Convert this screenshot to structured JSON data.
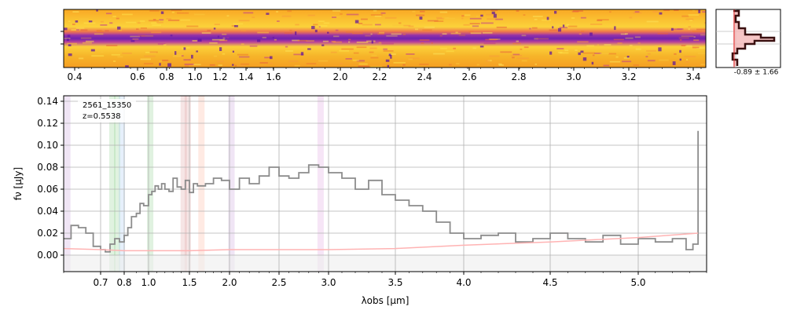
{
  "chart_data": [
    {
      "type": "heatmap",
      "panel": "2d-spectrum",
      "x_ticks": [
        "0.4",
        "0.6",
        "0.8",
        "1.0",
        "1.2",
        "1.4",
        "1.6",
        "2.0",
        "2.2",
        "2.4",
        "2.6",
        "2.8",
        "3.0",
        "3.2",
        "3.4"
      ],
      "x_tick_values": [
        0.4,
        0.6,
        0.8,
        1.0,
        1.2,
        1.4,
        1.6,
        2.0,
        2.2,
        2.4,
        2.6,
        2.8,
        3.0,
        3.2,
        3.4
      ],
      "colormap": "plasma",
      "trace_color": "#7a2ab0"
    },
    {
      "type": "histogram",
      "panel": "pixel-distribution",
      "annotation": "-0.89 ± 1.66",
      "fill_color": "#f4b6b6",
      "edge_color": "#3a1010",
      "line_color": "#e03030"
    },
    {
      "type": "line",
      "panel": "1d-spectrum",
      "title": "",
      "object_id": "2561_15350",
      "redshift_label": "z=0.5538",
      "xlabel": "λobs [μm]",
      "ylabel": "fν [μJy]",
      "xlim": [
        0.6,
        5.4
      ],
      "ylim": [
        -0.015,
        0.145
      ],
      "x_ticks": [
        0.7,
        0.8,
        1.0,
        1.5,
        2.0,
        2.5,
        3.0,
        3.5,
        4.0,
        4.5,
        5.0
      ],
      "x_tick_labels": [
        "0.7",
        "0.8",
        "1.0",
        "1.5",
        "2.0",
        "2.5",
        "3.0",
        "3.5",
        "4.0",
        "4.5",
        "5.0"
      ],
      "y_ticks": [
        0.0,
        0.02,
        0.04,
        0.06,
        0.08,
        0.1,
        0.12,
        0.14
      ],
      "y_tick_labels": [
        "0.00",
        "0.02",
        "0.04",
        "0.06",
        "0.08",
        "0.10",
        "0.12",
        "0.14"
      ],
      "grid": true,
      "series": [
        {
          "role": "flux",
          "color": "#8c8c8c",
          "x": [
            0.6,
            0.62,
            0.64,
            0.66,
            0.68,
            0.7,
            0.72,
            0.74,
            0.76,
            0.78,
            0.8,
            0.83,
            0.86,
            0.9,
            0.93,
            0.96,
            1.0,
            1.04,
            1.08,
            1.12,
            1.16,
            1.2,
            1.25,
            1.3,
            1.35,
            1.4,
            1.45,
            1.5,
            1.55,
            1.6,
            1.7,
            1.8,
            1.9,
            2.0,
            2.1,
            2.2,
            2.3,
            2.4,
            2.5,
            2.6,
            2.7,
            2.8,
            2.9,
            3.0,
            3.1,
            3.2,
            3.3,
            3.4,
            3.5,
            3.6,
            3.7,
            3.8,
            3.9,
            4.0,
            4.1,
            4.2,
            4.3,
            4.4,
            4.5,
            4.6,
            4.7,
            4.8,
            4.9,
            5.0,
            5.1,
            5.2,
            5.28,
            5.32,
            5.35
          ],
          "y": [
            0.015,
            0.027,
            0.025,
            0.02,
            0.008,
            0.005,
            0.003,
            0.01,
            0.015,
            0.012,
            0.018,
            0.025,
            0.035,
            0.038,
            0.047,
            0.045,
            0.055,
            0.058,
            0.063,
            0.06,
            0.065,
            0.06,
            0.058,
            0.07,
            0.062,
            0.06,
            0.068,
            0.057,
            0.065,
            0.063,
            0.065,
            0.07,
            0.068,
            0.06,
            0.07,
            0.065,
            0.072,
            0.08,
            0.072,
            0.07,
            0.075,
            0.082,
            0.08,
            0.075,
            0.07,
            0.06,
            0.068,
            0.055,
            0.05,
            0.045,
            0.04,
            0.03,
            0.02,
            0.015,
            0.018,
            0.02,
            0.012,
            0.015,
            0.02,
            0.015,
            0.012,
            0.018,
            0.01,
            0.015,
            0.012,
            0.015,
            0.005,
            0.01,
            0.113
          ]
        },
        {
          "role": "error",
          "color": "#ffb3b3",
          "x": [
            0.6,
            0.7,
            0.8,
            1.0,
            1.5,
            2.0,
            2.5,
            3.0,
            3.5,
            4.0,
            4.5,
            5.0,
            5.35
          ],
          "y": [
            0.006,
            0.005,
            0.004,
            0.004,
            0.004,
            0.005,
            0.005,
            0.005,
            0.006,
            0.009,
            0.012,
            0.016,
            0.02
          ]
        }
      ],
      "line_bands": [
        {
          "x": 0.61,
          "color": "#c9a0dc"
        },
        {
          "x": 0.75,
          "color": "#8fd18f"
        },
        {
          "x": 0.77,
          "color": "#8fd18f"
        },
        {
          "x": 0.79,
          "color": "#a6c8f0"
        },
        {
          "x": 1.02,
          "color": "#8fd18f"
        },
        {
          "x": 1.43,
          "color": "#e0a0a0"
        },
        {
          "x": 1.48,
          "color": "#e0a0a0"
        },
        {
          "x": 1.65,
          "color": "#ffb399"
        },
        {
          "x": 2.02,
          "color": "#c9a0dc"
        },
        {
          "x": 2.92,
          "color": "#e0a0e0"
        }
      ]
    }
  ]
}
